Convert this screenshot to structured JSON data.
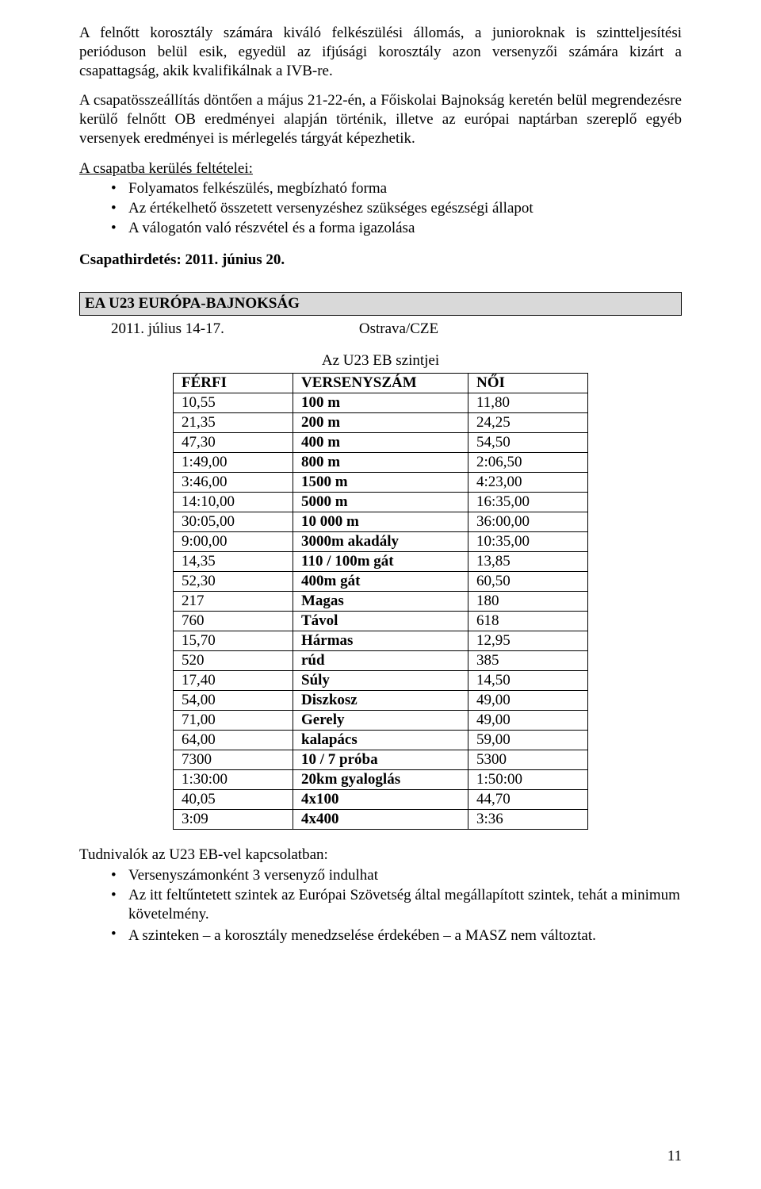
{
  "paragraphs": {
    "p1": "A felnőtt korosztály számára kiváló  felkészülési állomás, a junioroknak is  szintteljesítési perióduson belül esik, egyedül az ifjúsági korosztály azon versenyzői számára kizárt a csapattagság, akik kvalifikálnak a IVB-re.",
    "p2": "A csapatösszeállítás döntően a május 21-22-én, a Főiskolai Bajnokság keretén belül megrendezésre kerülő felnőtt OB eredményei alapján történik, illetve az európai naptárban szereplő egyéb versenyek eredményei is mérlegelés tárgyát képezhetik.",
    "conditions_title": "A csapatba kerülés feltételei:",
    "conditions": [
      "Folyamatos felkészülés, megbízható forma",
      "Az értékelhető összetett versenyzéshez szükséges egészségi állapot",
      "A válogatón való részvétel és a forma igazolása"
    ],
    "announce": "Csapathirdetés: 2011. június 20."
  },
  "section": {
    "banner_prefix": "EA U23 E",
    "banner_rest": "URÓPA-BAJNOKSÁG",
    "date": "2011. július 14-17.",
    "place": "Ostrava/CZE"
  },
  "table": {
    "title": "Az U23 EB szintjei",
    "headers": {
      "men": "FÉRFI",
      "event": "VERSENYSZÁM",
      "women": "NŐI"
    },
    "rows": [
      {
        "m": "10,55",
        "e": "100 m",
        "w": "11,80"
      },
      {
        "m": "21,35",
        "e": "200 m",
        "w": "24,25"
      },
      {
        "m": "47,30",
        "e": "400 m",
        "w": "54,50"
      },
      {
        "m": "1:49,00",
        "e": "800 m",
        "w": "2:06,50"
      },
      {
        "m": "3:46,00",
        "e": "1500 m",
        "w": "4:23,00"
      },
      {
        "m": "14:10,00",
        "e": "5000 m",
        "w": "16:35,00"
      },
      {
        "m": "30:05,00",
        "e": "10 000 m",
        "w": "36:00,00"
      },
      {
        "m": "9:00,00",
        "e": "3000m akadály",
        "w": "10:35,00"
      },
      {
        "m": "14,35",
        "e": "110 / 100m gát",
        "w": "13,85"
      },
      {
        "m": "52,30",
        "e": "400m gát",
        "w": "60,50"
      },
      {
        "m": "217",
        "e": "Magas",
        "w": "180"
      },
      {
        "m": "760",
        "e": "Távol",
        "w": "618"
      },
      {
        "m": "15,70",
        "e": "Hármas",
        "w": "12,95"
      },
      {
        "m": "520",
        "e": "rúd",
        "w": "385"
      },
      {
        "m": "17,40",
        "e": "Súly",
        "w": "14,50"
      },
      {
        "m": "54,00",
        "e": "Diszkosz",
        "w": "49,00"
      },
      {
        "m": "71,00",
        "e": "Gerely",
        "w": "49,00"
      },
      {
        "m": "64,00",
        "e": "kalapács",
        "w": "59,00"
      },
      {
        "m": "7300",
        "e": "10 / 7 próba",
        "w": "5300"
      },
      {
        "m": "1:30:00",
        "e": "20km gyaloglás",
        "w": "1:50:00"
      },
      {
        "m": "40,05",
        "e": "4x100",
        "w": "44,70"
      },
      {
        "m": "3:09",
        "e": "4x400",
        "w": "3:36"
      }
    ]
  },
  "footer": {
    "intro": "Tudnivalók az U23 EB-vel kapcsolatban:",
    "items": [
      "Versenyszámonként 3 versenyző indulhat",
      "Az itt feltűntetett szintek az Európai Szövetség által megállapított szintek, tehát a minimum követelmény.",
      "A szinteken – a korosztály menedzselése érdekében – a MASZ nem változtat."
    ]
  },
  "page_number": "11"
}
